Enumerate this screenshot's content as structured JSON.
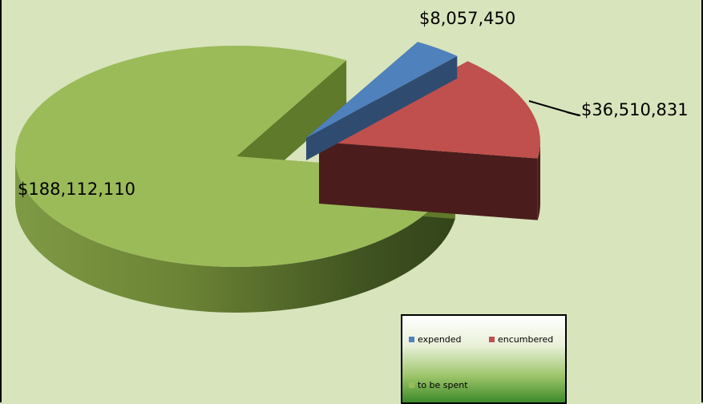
{
  "chart_data": {
    "type": "pie",
    "slices": [
      {
        "name": "expended",
        "value": 8057450,
        "label": "$8,057,450",
        "color": "#4f81bd",
        "side_color": "#2f4c70"
      },
      {
        "name": "encumbered",
        "value": 36510831,
        "label": "$36,510,831",
        "color": "#c0504d",
        "side_color": "#4a1d1c"
      },
      {
        "name": "to be spent",
        "value": 188112110,
        "label": "$188,112,110",
        "color": "#9bbb59",
        "side_color": "#5f7a2a"
      }
    ],
    "three_d": true,
    "legend_position": "bottom-right"
  }
}
